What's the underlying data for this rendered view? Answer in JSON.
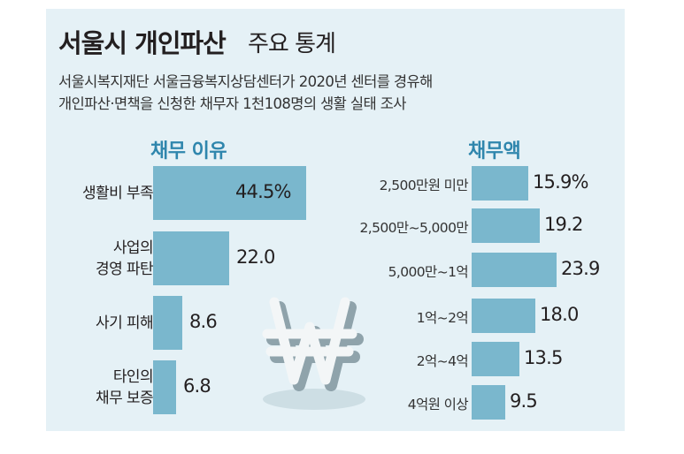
{
  "colors": {
    "panel": "#e5f1f6",
    "bar": "#7ab7cd",
    "heading": "#2f86ad",
    "text": "#231f20"
  },
  "header": {
    "title_bold": "서울시 개인파산",
    "title_regular": "주요 통계",
    "subtitle_line1": "서울시복지재단 서울금융복지상담센터가 2020년 센터를 경유해",
    "subtitle_line2": "개인파산·면책을 신청한 채무자 1천108명의 생활 실태 조사"
  },
  "decoration": {
    "icon": "won-sign-icon"
  },
  "chart_data": [
    {
      "type": "bar",
      "orientation": "horizontal",
      "title": "채무 이유",
      "unit": "%",
      "categories": [
        [
          "생활비 부족"
        ],
        [
          "사업의",
          "경영 파탄"
        ],
        [
          "사기 피해"
        ],
        [
          "타인의",
          "채무 보증"
        ]
      ],
      "values": [
        44.5,
        22.0,
        8.6,
        6.8
      ],
      "labels": [
        "44.5%",
        "22.0",
        "8.6",
        "6.8"
      ],
      "xlim": [
        0,
        44.5
      ]
    },
    {
      "type": "bar",
      "orientation": "horizontal",
      "title": "채무액",
      "unit": "%",
      "categories": [
        "2,500만원 미만",
        "2,500만~5,000만",
        "5,000만~1억",
        "1억~2억",
        "2억~4억",
        "4억원 이상"
      ],
      "values": [
        15.9,
        19.2,
        23.9,
        18.0,
        13.5,
        9.5
      ],
      "labels": [
        "15.9%",
        "19.2",
        "23.9",
        "18.0",
        "13.5",
        "9.5"
      ],
      "xlim": [
        0,
        23.9
      ]
    }
  ]
}
